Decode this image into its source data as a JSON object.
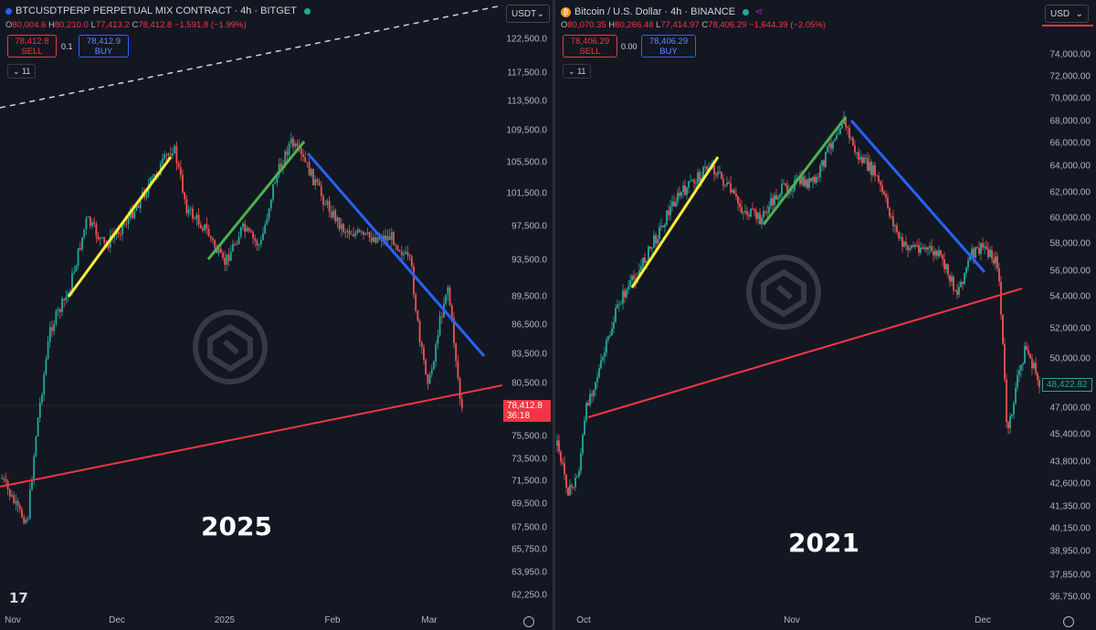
{
  "left": {
    "title": "BTCUSDTPERP PERPETUAL MIX CONTRACT · 4h · BITGET",
    "ohlc": {
      "o_label": "O",
      "o": "80,004.6",
      "h_label": "H",
      "h": "80,210.0",
      "l_label": "L",
      "l": "77,413.2",
      "c_label": "C",
      "c": "78,412.8",
      "chg": "−1,591.8 (−1.99%)"
    },
    "sell_price": "78,412.8",
    "sell_label": "SELL",
    "spread": "0.1",
    "buy_price": "78,412.9",
    "buy_label": "BUY",
    "indicators_count": "11",
    "currency": "USDT",
    "year_label": "2025",
    "price_tag": "78,412.8",
    "countdown": "36:18",
    "colors": {
      "bull": "#26a69a",
      "bear": "#ef5350",
      "yellow": "#ffeb3b",
      "green": "#4caf50",
      "blue": "#2962ff",
      "support": "#f23645"
    },
    "y_ticks": [
      "122,500.0",
      "117,500.0",
      "113,500.0",
      "109,500.0",
      "105,500.0",
      "101,500.0",
      "97,500.0",
      "93,500.0",
      "89,500.0",
      "86,500.0",
      "83,500.0",
      "80,500.0",
      "75,500.0",
      "73,500.0",
      "71,500.0",
      "69,500.0",
      "67,500.0",
      "65,750.0",
      "63,950.0",
      "62,250.0"
    ],
    "x_ticks": [
      "Nov",
      "Dec",
      "2025",
      "Feb",
      "Mar"
    ]
  },
  "right": {
    "title": "Bitcoin / U.S. Dollar · 4h · BINANCE",
    "coin_icon": "₿",
    "ohlc": {
      "o_label": "O",
      "o": "80,070.35",
      "h_label": "H",
      "h": "80,266.48",
      "l_label": "L",
      "l": "77,414.97",
      "c_label": "C",
      "c": "78,406.29",
      "chg": "−1,644.39 (−2.05%)"
    },
    "sell_price": "78,406.29",
    "sell_label": "SELL",
    "spread": "0.00",
    "buy_price": "78,406.29",
    "buy_label": "BUY",
    "indicators_count": "11",
    "currency": "USD",
    "year_label": "2021",
    "price_tag": "48,422.82",
    "y_ticks": [
      "74,000.00",
      "72,000.00",
      "70,000.00",
      "68,000.00",
      "66,000.00",
      "64,000.00",
      "62,000.00",
      "60,000.00",
      "58,000.00",
      "56,000.00",
      "54,000.00",
      "52,000.00",
      "50,000.00",
      "47,000.00",
      "45,400.00",
      "43,800.00",
      "42,600.00",
      "41,350.00",
      "40,150.00",
      "38,950.00",
      "37,850.00",
      "36,750.00"
    ],
    "x_ticks": [
      "Oct",
      "Nov",
      "Dec"
    ]
  },
  "icons": [
    "tradingview-logo-icon",
    "settings-gear-icon",
    "bitcoin-coin-icon",
    "market-open-dot-icon",
    "chevron-down-icon"
  ]
}
